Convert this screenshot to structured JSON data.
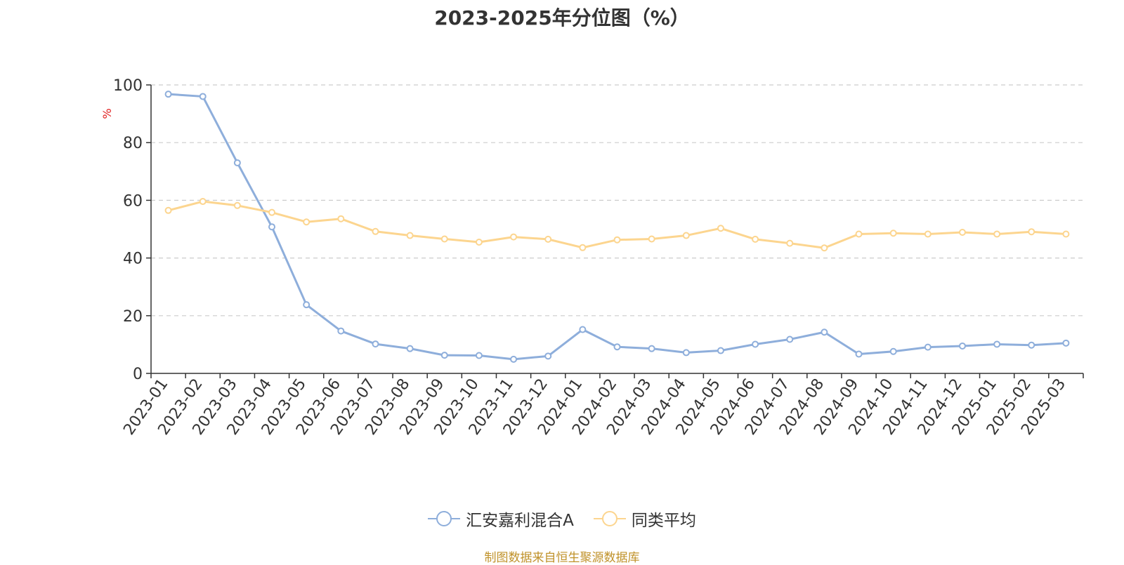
{
  "title": "2023-2025年分位图（%）",
  "source": "制图数据来自恒生聚源数据库",
  "colors": {
    "series_fund": "#8eaedb",
    "series_avg": "#fcd58f",
    "ylabel": "#e02020",
    "source": "#c0922a",
    "grid": "#cccccc",
    "axis": "#333333"
  },
  "chart_data": {
    "type": "line",
    "title": "2023-2025年分位图（%）",
    "xlabel": "",
    "ylabel": "%",
    "ylim": [
      0,
      100
    ],
    "yticks": [
      0,
      20,
      40,
      60,
      80,
      100
    ],
    "grid": true,
    "legend_position": "bottom",
    "categories": [
      "2023-01",
      "2023-02",
      "2023-03",
      "2023-04",
      "2023-05",
      "2023-06",
      "2023-07",
      "2023-08",
      "2023-09",
      "2023-10",
      "2023-11",
      "2023-12",
      "2024-01",
      "2024-02",
      "2024-03",
      "2024-04",
      "2024-05",
      "2024-06",
      "2024-07",
      "2024-08",
      "2024-09",
      "2024-10",
      "2024-11",
      "2024-12",
      "2025-01",
      "2025-02",
      "2025-03"
    ],
    "series": [
      {
        "name": "汇安嘉利混合A",
        "values": [
          96.8,
          96.0,
          73.0,
          50.8,
          23.8,
          14.7,
          10.2,
          8.6,
          6.3,
          6.2,
          4.9,
          6.0,
          15.2,
          9.2,
          8.6,
          7.2,
          7.9,
          10.1,
          11.8,
          14.3,
          6.7,
          7.6,
          9.1,
          9.5,
          10.1,
          9.8,
          10.5
        ]
      },
      {
        "name": "同类平均",
        "values": [
          56.5,
          59.6,
          58.2,
          55.8,
          52.5,
          53.6,
          49.2,
          47.8,
          46.6,
          45.5,
          47.3,
          46.5,
          43.6,
          46.3,
          46.6,
          47.8,
          50.3,
          46.5,
          45.1,
          43.5,
          48.3,
          48.6,
          48.3,
          48.9,
          48.3,
          49.1,
          48.3
        ]
      }
    ]
  }
}
